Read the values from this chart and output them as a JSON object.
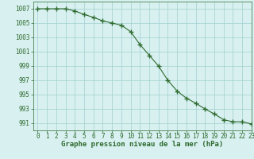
{
  "x": [
    0,
    1,
    2,
    3,
    4,
    5,
    6,
    7,
    8,
    9,
    10,
    11,
    12,
    13,
    14,
    15,
    16,
    17,
    18,
    19,
    20,
    21,
    22,
    23
  ],
  "y": [
    1007.0,
    1007.0,
    1007.0,
    1007.0,
    1006.7,
    1006.2,
    1005.8,
    1005.3,
    1005.0,
    1004.7,
    1003.8,
    1002.0,
    1000.5,
    999.0,
    997.0,
    995.5,
    994.5,
    993.8,
    993.0,
    992.3,
    991.5,
    991.2,
    991.2,
    990.9
  ],
  "line_color": "#2d6a2d",
  "marker_color": "#2d6a2d",
  "bg_color": "#d8f0f0",
  "grid_color": "#a0d0d0",
  "xlabel": "Graphe pression niveau de la mer (hPa)",
  "xlim": [
    -0.5,
    23
  ],
  "ylim": [
    990,
    1008
  ],
  "yticks": [
    991,
    993,
    995,
    997,
    999,
    1001,
    1003,
    1005,
    1007
  ],
  "xticks": [
    0,
    1,
    2,
    3,
    4,
    5,
    6,
    7,
    8,
    9,
    10,
    11,
    12,
    13,
    14,
    15,
    16,
    17,
    18,
    19,
    20,
    21,
    22,
    23
  ],
  "xlabel_fontsize": 6.5,
  "tick_fontsize": 5.5,
  "marker_size": 4,
  "line_width": 0.8
}
